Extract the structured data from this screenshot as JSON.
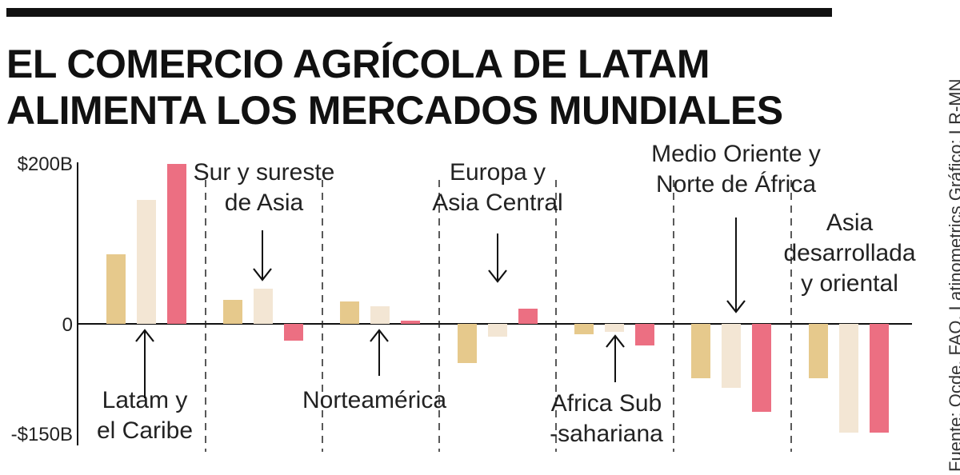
{
  "header": {
    "title_line1": "EL COMERCIO AGRÍCOLA DE LATAM",
    "title_line2": "ALIMENTA LOS MERCADOS MUNDIALES"
  },
  "source": "Fuente: Ocde, FAO, Latinometrics   Gráfico: LR-MN",
  "colors": {
    "series1": "#e6c98c",
    "series2": "#f3e6d4",
    "series3": "#ec6f82",
    "axis": "#111111"
  },
  "chart_data": {
    "type": "bar",
    "ylim": [
      -150,
      200
    ],
    "y_ticks": [
      {
        "value": 200,
        "label": "$200B"
      },
      {
        "value": 0,
        "label": "0"
      },
      {
        "value": -150,
        "label": "-$150B"
      }
    ],
    "categories": [
      "Latam y el Caribe",
      "Sur y sureste de Asia",
      "Norteamérica",
      "Europa y Asia Central",
      "Africa Sub -sahariana",
      "Medio Oriente y Norte de África",
      "Asia desarrollada y oriental"
    ],
    "category_labels": [
      [
        "Latam y",
        "el Caribe"
      ],
      [
        "Sur y sureste",
        "de Asia"
      ],
      [
        "Norteamérica"
      ],
      [
        "Europa y",
        "Asia Central"
      ],
      [
        "Africa Sub",
        "-sahariana"
      ],
      [
        "Medio Oriente y",
        "Norte de África"
      ],
      [
        "Asia",
        "desarrollada",
        "y oriental"
      ]
    ],
    "series": [
      {
        "values": [
          87,
          30,
          28,
          -49,
          -13,
          -68,
          -68
        ]
      },
      {
        "values": [
          155,
          44,
          22,
          -16,
          -10,
          -80,
          -136
        ]
      },
      {
        "values": [
          200,
          -21,
          4,
          19,
          -27,
          -110,
          -136
        ]
      }
    ]
  }
}
